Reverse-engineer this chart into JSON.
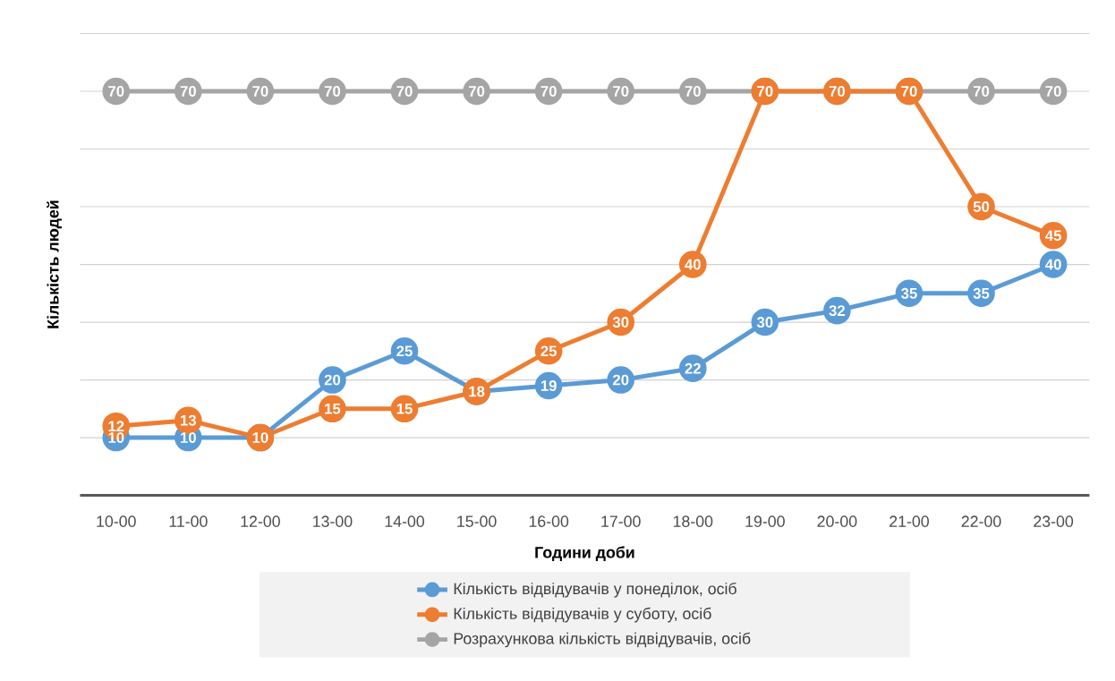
{
  "chart_data": {
    "type": "line",
    "xlabel": "Години доби",
    "ylabel": "Кількість людей",
    "categories": [
      "10-00",
      "11-00",
      "12-00",
      "13-00",
      "14-00",
      "15-00",
      "16-00",
      "17-00",
      "18-00",
      "19-00",
      "20-00",
      "21-00",
      "22-00",
      "23-00"
    ],
    "series": [
      {
        "name": "Кількість відвідувачів у понеділок, осіб",
        "color": "#5b9bd5",
        "values": [
          10,
          10,
          10,
          20,
          25,
          18,
          19,
          20,
          22,
          30,
          32,
          35,
          35,
          40
        ],
        "value_labels": [
          "10",
          "10",
          null,
          "20",
          "25",
          null,
          "19",
          "20",
          "22",
          "30",
          "32",
          "35",
          "35",
          "40"
        ]
      },
      {
        "name": "Кількість відвідувачів у суботу, осіб",
        "color": "#ed7d31",
        "values": [
          12,
          13,
          10,
          15,
          15,
          18,
          25,
          30,
          40,
          70,
          70,
          70,
          50,
          45
        ],
        "value_labels": [
          "12",
          "13",
          "10",
          "15",
          "15",
          "18",
          "25",
          "30",
          "40",
          "70",
          "70",
          "70",
          "50",
          "45"
        ]
      },
      {
        "name": "Розрахункова кількість відвідувачів, осіб",
        "color": "#a5a5a5",
        "values": [
          70,
          70,
          70,
          70,
          70,
          70,
          70,
          70,
          70,
          70,
          70,
          70,
          70,
          70
        ],
        "value_labels": [
          "70",
          "70",
          "70",
          "70",
          "70",
          "70",
          "70",
          "70",
          "70",
          null,
          null,
          null,
          "70",
          "70"
        ]
      }
    ],
    "tick_labels": "x",
    "grid": "y",
    "legend": "bottom",
    "marker": "circle",
    "line_style": "solid"
  }
}
